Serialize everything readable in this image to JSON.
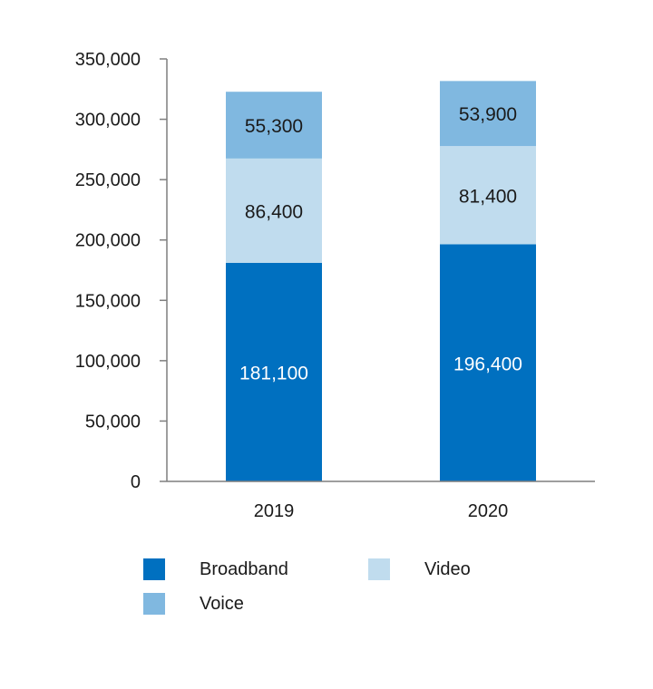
{
  "chart_data": {
    "type": "bar",
    "stacked": true,
    "title": "",
    "xlabel": "",
    "ylabel": "",
    "categories": [
      "2019",
      "2020"
    ],
    "ylim": [
      0,
      350000
    ],
    "yticks": [
      {
        "value": 0,
        "label": "0"
      },
      {
        "value": 50000,
        "label": "50,000"
      },
      {
        "value": 100000,
        "label": "100,000"
      },
      {
        "value": 150000,
        "label": "150,000"
      },
      {
        "value": 200000,
        "label": "200,000"
      },
      {
        "value": 250000,
        "label": "250,000"
      },
      {
        "value": 300000,
        "label": "300,000"
      },
      {
        "value": 350000,
        "label": "350,000"
      }
    ],
    "series": [
      {
        "name": "Broadband",
        "color": "#0070c0",
        "label_color": "#ffffff",
        "values": [
          181100,
          196400
        ],
        "labels": [
          "181,100",
          "196,400"
        ]
      },
      {
        "name": "Video",
        "color": "#c0dcee",
        "label_color": "#1a1a1a",
        "values": [
          86400,
          81400
        ],
        "labels": [
          "86,400",
          "81,400"
        ]
      },
      {
        "name": "Voice",
        "color": "#80b8e0",
        "label_color": "#1a1a1a",
        "values": [
          55300,
          53900
        ],
        "labels": [
          "55,300",
          "53,900"
        ]
      }
    ],
    "legend": {
      "position": "bottom",
      "items": [
        {
          "label": "Broadband",
          "color": "#0070c0"
        },
        {
          "label": "Video",
          "color": "#c0dcee"
        },
        {
          "label": "Voice",
          "color": "#80b8e0"
        }
      ]
    },
    "axis_color": "#7f7f7f"
  }
}
